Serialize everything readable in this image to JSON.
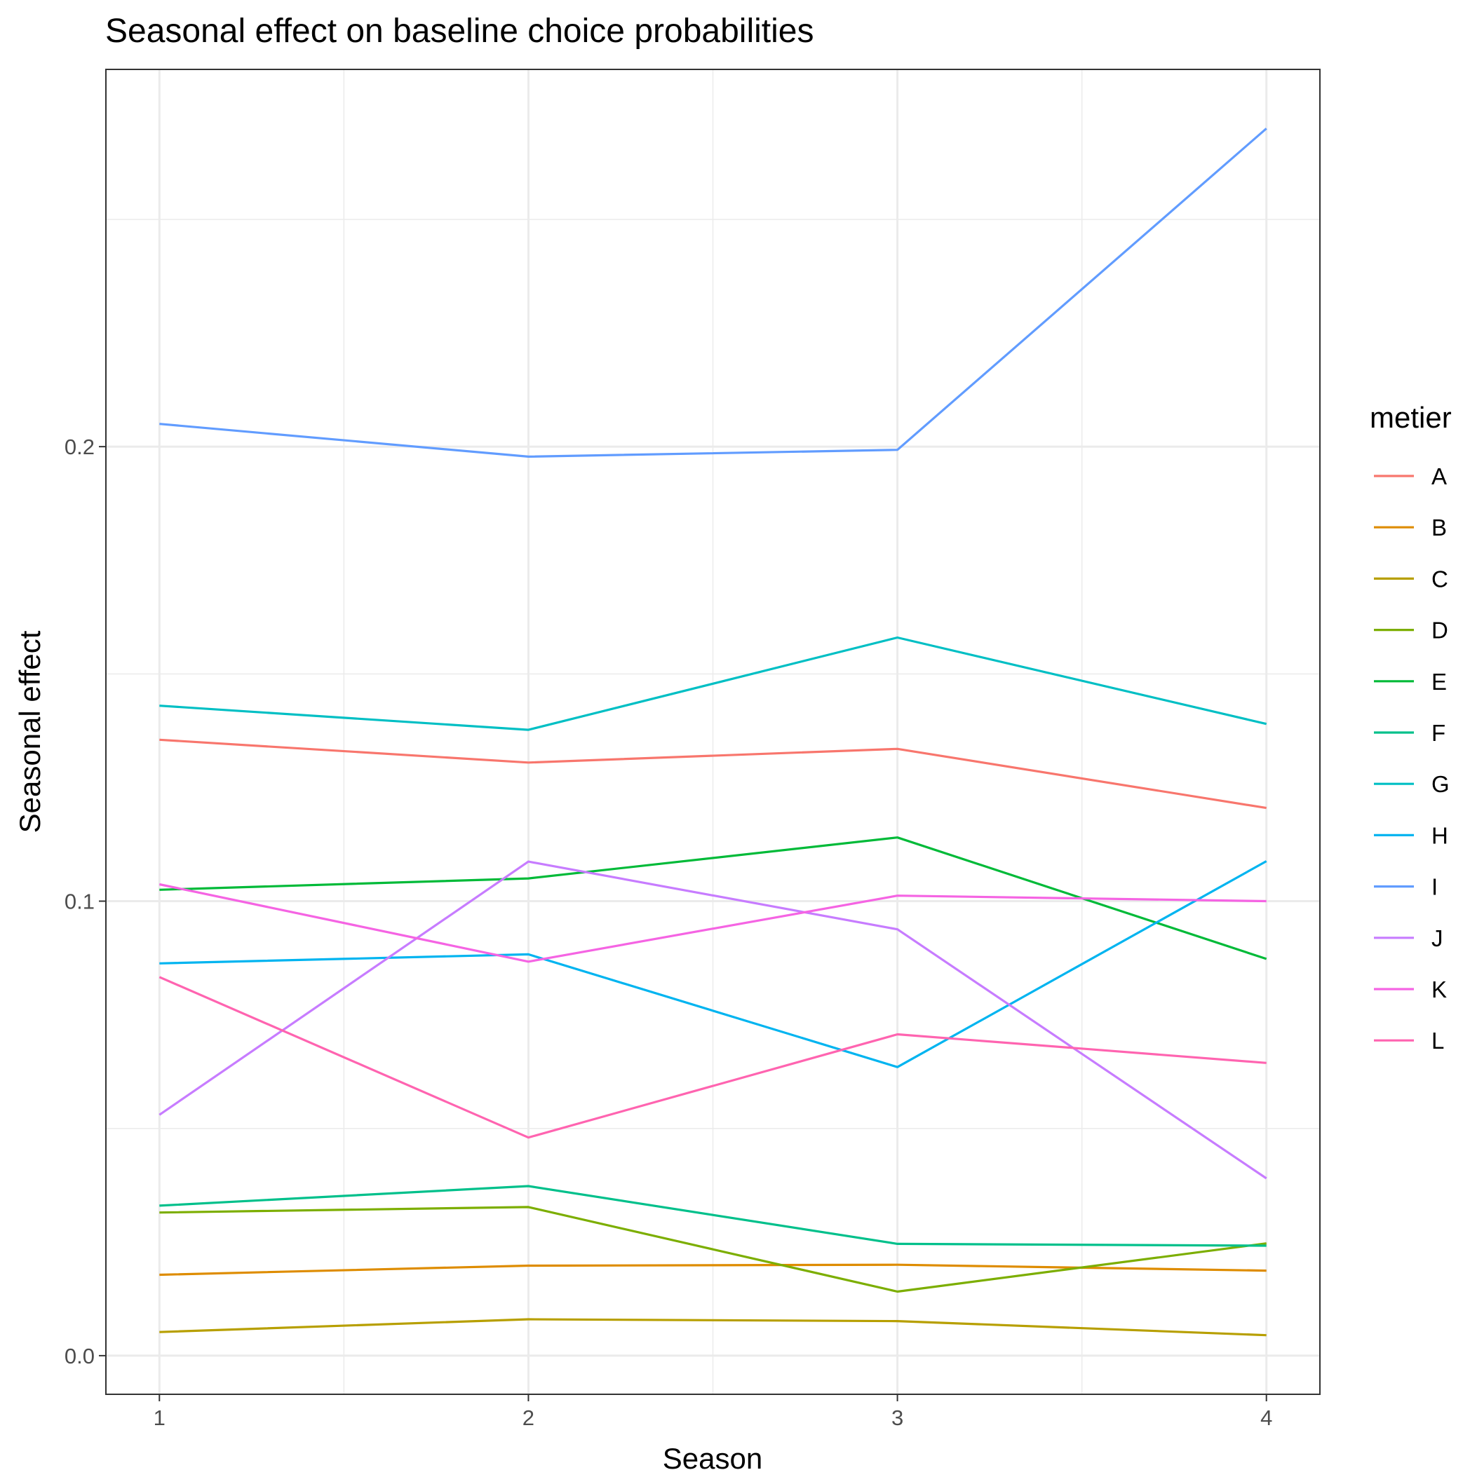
{
  "chart_data": {
    "type": "line",
    "title": "Seasonal effect on baseline choice probabilities",
    "xlabel": "Season",
    "ylabel": "Seasonal effect",
    "x": [
      1,
      2,
      3,
      4
    ],
    "x_ticks": [
      "1",
      "2",
      "3",
      "4"
    ],
    "y_ticks": [
      "0.0",
      "0.1",
      "0.2"
    ],
    "y_tick_values": [
      0.0,
      0.1,
      0.2
    ],
    "xlim": [
      0.855,
      4.145
    ],
    "ylim": [
      -0.0085,
      0.283
    ],
    "grid": true,
    "legend": {
      "title": "metier",
      "position": "right"
    },
    "series": [
      {
        "name": "A",
        "color": "#F8766D",
        "values": [
          0.1355,
          0.1305,
          0.1335,
          0.1205
        ]
      },
      {
        "name": "B",
        "color": "#DE8C00",
        "values": [
          0.0178,
          0.0198,
          0.02,
          0.0187
        ]
      },
      {
        "name": "C",
        "color": "#B79F00",
        "values": [
          0.0052,
          0.008,
          0.0076,
          0.0045
        ]
      },
      {
        "name": "D",
        "color": "#7CAE00",
        "values": [
          0.0315,
          0.0327,
          0.0141,
          0.0247
        ]
      },
      {
        "name": "E",
        "color": "#00BA38",
        "values": [
          0.1025,
          0.105,
          0.114,
          0.0873
        ]
      },
      {
        "name": "F",
        "color": "#00C08B",
        "values": [
          0.033,
          0.0373,
          0.0246,
          0.0242
        ]
      },
      {
        "name": "G",
        "color": "#00BFC4",
        "values": [
          0.143,
          0.1377,
          0.158,
          0.139
        ]
      },
      {
        "name": "H",
        "color": "#00B4F0",
        "values": [
          0.0863,
          0.0883,
          0.0635,
          0.1088
        ]
      },
      {
        "name": "I",
        "color": "#619CFF",
        "values": [
          0.205,
          0.1978,
          0.1993,
          0.27
        ]
      },
      {
        "name": "J",
        "color": "#C77CFF",
        "values": [
          0.053,
          0.1087,
          0.0938,
          0.039
        ]
      },
      {
        "name": "K",
        "color": "#F564E3",
        "values": [
          0.1037,
          0.0867,
          0.1012,
          0.1
        ]
      },
      {
        "name": "L",
        "color": "#FF64B0",
        "values": [
          0.0833,
          0.048,
          0.0707,
          0.0644
        ]
      }
    ]
  }
}
